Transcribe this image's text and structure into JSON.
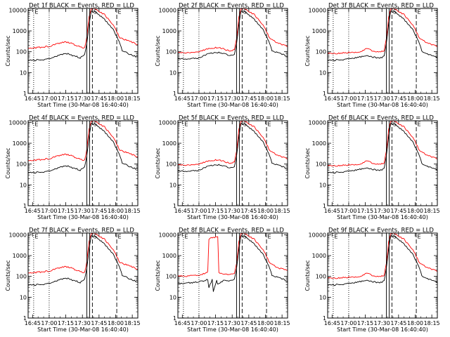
{
  "chart_data": {
    "type": "line",
    "shared": {
      "ylabel": "Counts/sec",
      "xlabel": "Start Time (30-Mar-08 16:40:40)",
      "yscale": "log",
      "ylim": [
        1,
        12000
      ],
      "xlim": [
        "16:41",
        "18:20"
      ],
      "yticks": [
        1,
        10,
        100,
        1000,
        10000
      ],
      "ytick_labels": [
        "1",
        "10",
        "100",
        "1000",
        "10000"
      ],
      "xticks": [
        "16:45",
        "17:00",
        "17:15",
        "17:30",
        "17:45",
        "18:00",
        "18:15"
      ],
      "markers": [
        {
          "time": "16:46",
          "label": "E",
          "style": "dotted"
        },
        {
          "time": "17:00",
          "label": "",
          "style": "dotted"
        },
        {
          "time": "17:34",
          "label": "",
          "style": "solid"
        },
        {
          "time": "17:36.5",
          "label": "",
          "style": "solid"
        },
        {
          "time": "17:39",
          "label": "S",
          "style": "dashed"
        },
        {
          "time": "18:01",
          "label": "E",
          "style": "dashed"
        }
      ],
      "series_colors": {
        "events": "#000000",
        "lld": "#ff0000"
      }
    },
    "panels": [
      {
        "title": "Det 1f BLACK = Events, RED = LLD",
        "markers": [
          "E",
          "",
          "",
          "",
          "S",
          "E"
        ],
        "series": [
          {
            "key": "events",
            "x": [
              "16:41",
              "16:50",
              "17:00",
              "17:10",
              "17:16",
              "17:22",
              "17:28",
              "17:32",
              "17:34",
              "17:36",
              "17:38",
              "17:42",
              "17:50",
              "17:58",
              "18:04",
              "18:06",
              "18:12",
              "18:20"
            ],
            "y": [
              38,
              40,
              45,
              75,
              80,
              65,
              52,
              70,
              250,
              2200,
              8500,
              8000,
              3500,
              1100,
              250,
              110,
              80,
              55
            ]
          },
          {
            "key": "lld",
            "x": [
              "16:41",
              "16:50",
              "17:00",
              "17:10",
              "17:16",
              "17:22",
              "17:28",
              "17:32",
              "17:34",
              "17:36",
              "17:38",
              "17:42",
              "17:50",
              "17:58",
              "18:04",
              "18:12",
              "18:20"
            ],
            "y": [
              150,
              160,
              180,
              270,
              290,
              230,
              170,
              160,
              500,
              5000,
              11000,
              11000,
              6000,
              1800,
              450,
              320,
              230
            ]
          }
        ]
      },
      {
        "title": "Det 2f BLACK = Events, RED = LLD",
        "markers": [
          "E",
          "",
          "",
          "",
          "S",
          "E"
        ],
        "series": [
          {
            "key": "events",
            "x": [
              "16:41",
              "16:50",
              "17:00",
              "17:10",
              "17:16",
              "17:22",
              "17:28",
              "17:32",
              "17:34",
              "17:36",
              "17:38",
              "17:42",
              "17:50",
              "17:58",
              "18:04",
              "18:06",
              "18:12",
              "18:20"
            ],
            "y": [
              45,
              45,
              52,
              85,
              95,
              80,
              65,
              70,
              250,
              2200,
              8500,
              8000,
              3500,
              1100,
              250,
              110,
              85,
              60
            ]
          },
          {
            "key": "lld",
            "x": [
              "16:41",
              "16:50",
              "17:00",
              "17:10",
              "17:16",
              "17:22",
              "17:28",
              "17:32",
              "17:34",
              "17:36",
              "17:38",
              "17:42",
              "17:50",
              "17:58",
              "18:04",
              "18:12",
              "18:20"
            ],
            "y": [
              90,
              92,
              100,
              150,
              160,
              140,
              110,
              120,
              400,
              4500,
              11000,
              11000,
              6000,
              1800,
              450,
              250,
              180
            ]
          }
        ]
      },
      {
        "title": "Det 3f BLACK = Events, RED = LLD",
        "markers": [
          "E",
          "",
          "",
          "",
          "S",
          "E"
        ],
        "series": [
          {
            "key": "events",
            "x": [
              "16:41",
              "16:50",
              "17:00",
              "17:10",
              "17:16",
              "17:22",
              "17:28",
              "17:32",
              "17:34",
              "17:36",
              "17:38",
              "17:42",
              "17:50",
              "17:58",
              "18:04",
              "18:06",
              "18:12",
              "18:20"
            ],
            "y": [
              38,
              40,
              45,
              55,
              70,
              55,
              50,
              60,
              250,
              2200,
              8500,
              8000,
              3500,
              1100,
              250,
              110,
              75,
              50
            ]
          },
          {
            "key": "lld",
            "x": [
              "16:41",
              "16:50",
              "17:00",
              "17:10",
              "17:16",
              "17:22",
              "17:28",
              "17:32",
              "17:34",
              "17:36",
              "17:38",
              "17:42",
              "17:50",
              "17:58",
              "18:04",
              "18:12",
              "18:20"
            ],
            "y": [
              80,
              85,
              90,
              100,
              140,
              110,
              100,
              110,
              400,
              4500,
              11000,
              11000,
              6000,
              1800,
              450,
              250,
              180
            ]
          }
        ]
      },
      {
        "title": "Det 4f BLACK = Events, RED = LLD",
        "markers": [
          "E",
          "",
          "",
          "",
          "S",
          "E"
        ],
        "series": [
          {
            "key": "events",
            "x": [
              "16:41",
              "16:50",
              "17:00",
              "17:10",
              "17:16",
              "17:22",
              "17:28",
              "17:32",
              "17:34",
              "17:36",
              "17:38",
              "17:42",
              "17:50",
              "17:58",
              "18:04",
              "18:06",
              "18:12",
              "18:20"
            ],
            "y": [
              38,
              40,
              45,
              75,
              80,
              65,
              52,
              70,
              250,
              2200,
              8500,
              8000,
              3500,
              1100,
              250,
              110,
              80,
              55
            ]
          },
          {
            "key": "lld",
            "x": [
              "16:41",
              "16:50",
              "17:00",
              "17:10",
              "17:16",
              "17:22",
              "17:28",
              "17:32",
              "17:34",
              "17:36",
              "17:38",
              "17:42",
              "17:50",
              "17:58",
              "18:04",
              "18:12",
              "18:20"
            ],
            "y": [
              150,
              160,
              180,
              270,
              290,
              230,
              170,
              160,
              500,
              5000,
              11000,
              11000,
              6000,
              1800,
              450,
              320,
              230
            ]
          }
        ]
      },
      {
        "title": "Det 5f BLACK = Events, RED = LLD",
        "markers": [
          "E",
          "",
          "",
          "",
          "S",
          "E"
        ],
        "series": [
          {
            "key": "events",
            "x": [
              "16:41",
              "16:50",
              "17:00",
              "17:10",
              "17:16",
              "17:22",
              "17:28",
              "17:32",
              "17:34",
              "17:36",
              "17:38",
              "17:42",
              "17:50",
              "17:58",
              "18:04",
              "18:06",
              "18:12",
              "18:20"
            ],
            "y": [
              45,
              45,
              52,
              85,
              95,
              80,
              65,
              70,
              250,
              2200,
              8500,
              8000,
              3500,
              1100,
              250,
              110,
              85,
              60
            ]
          },
          {
            "key": "lld",
            "x": [
              "16:41",
              "16:50",
              "17:00",
              "17:10",
              "17:16",
              "17:22",
              "17:28",
              "17:32",
              "17:34",
              "17:36",
              "17:38",
              "17:42",
              "17:50",
              "17:58",
              "18:04",
              "18:12",
              "18:20"
            ],
            "y": [
              90,
              92,
              100,
              150,
              160,
              140,
              110,
              120,
              400,
              4500,
              11000,
              11000,
              6000,
              1800,
              450,
              250,
              180
            ]
          }
        ]
      },
      {
        "title": "Det 6f BLACK = Events, RED = LLD",
        "markers": [
          "E",
          "",
          "",
          "",
          "S",
          "E"
        ],
        "series": [
          {
            "key": "events",
            "x": [
              "16:41",
              "16:50",
              "17:00",
              "17:10",
              "17:16",
              "17:22",
              "17:28",
              "17:32",
              "17:34",
              "17:36",
              "17:38",
              "17:42",
              "17:50",
              "17:58",
              "18:04",
              "18:06",
              "18:12",
              "18:20"
            ],
            "y": [
              38,
              40,
              45,
              55,
              70,
              55,
              50,
              60,
              250,
              2200,
              8500,
              8000,
              3500,
              1100,
              250,
              110,
              75,
              50
            ]
          },
          {
            "key": "lld",
            "x": [
              "16:41",
              "16:50",
              "17:00",
              "17:10",
              "17:16",
              "17:22",
              "17:28",
              "17:32",
              "17:34",
              "17:36",
              "17:38",
              "17:42",
              "17:50",
              "17:58",
              "18:04",
              "18:12",
              "18:20"
            ],
            "y": [
              80,
              85,
              90,
              100,
              140,
              110,
              100,
              110,
              400,
              4500,
              11000,
              11000,
              6000,
              1800,
              450,
              250,
              180
            ]
          }
        ]
      },
      {
        "title": "Det 7f BLACK = Events, RED = LLD",
        "markers": [
          "E",
          "",
          "",
          "",
          "S",
          "E"
        ],
        "series": [
          {
            "key": "events",
            "x": [
              "16:41",
              "16:50",
              "17:00",
              "17:10",
              "17:16",
              "17:22",
              "17:28",
              "17:32",
              "17:34",
              "17:36",
              "17:38",
              "17:42",
              "17:50",
              "17:58",
              "18:04",
              "18:06",
              "18:12",
              "18:20"
            ],
            "y": [
              38,
              40,
              45,
              75,
              80,
              65,
              52,
              70,
              250,
              2200,
              8500,
              8000,
              3500,
              1100,
              250,
              110,
              80,
              55
            ]
          },
          {
            "key": "lld",
            "x": [
              "16:41",
              "16:50",
              "17:00",
              "17:10",
              "17:16",
              "17:22",
              "17:28",
              "17:32",
              "17:34",
              "17:36",
              "17:38",
              "17:42",
              "17:50",
              "17:58",
              "18:04",
              "18:12",
              "18:20"
            ],
            "y": [
              150,
              160,
              180,
              270,
              290,
              230,
              170,
              160,
              500,
              5000,
              11000,
              11000,
              6000,
              1800,
              450,
              320,
              230
            ]
          }
        ]
      },
      {
        "title": "Det 8f BLACK = Events, RED = LLD",
        "markers": [
          "E",
          "",
          "",
          "",
          "S",
          "E"
        ],
        "series": [
          {
            "key": "events",
            "x": [
              "16:41",
              "16:50",
              "17:00",
              "17:08",
              "17:09",
              "17:12",
              "17:13",
              "17:16",
              "17:17",
              "17:22",
              "17:28",
              "17:32",
              "17:34",
              "17:36",
              "17:38",
              "17:42",
              "17:50",
              "17:58",
              "18:04",
              "18:06",
              "18:12",
              "18:20"
            ],
            "y": [
              45,
              48,
              55,
              70,
              30,
              70,
              20,
              70,
              40,
              65,
              60,
              70,
              250,
              2200,
              8500,
              8000,
              3500,
              1100,
              250,
              110,
              85,
              60
            ]
          },
          {
            "key": "lld",
            "x": [
              "16:41",
              "16:50",
              "17:00",
              "17:07",
              "17:08",
              "17:09",
              "17:11",
              "17:12",
              "17:17",
              "17:18",
              "17:22",
              "17:28",
              "17:32",
              "17:34",
              "17:36",
              "17:38",
              "17:42",
              "17:50",
              "17:58",
              "18:04",
              "18:12",
              "18:20"
            ],
            "y": [
              100,
              105,
              110,
              150,
              170,
              6000,
              7000,
              7500,
              7500,
              160,
              130,
              120,
              130,
              400,
              4500,
              11000,
              11000,
              6000,
              1800,
              450,
              250,
              190
            ]
          }
        ]
      },
      {
        "title": "Det 9f BLACK = Events, RED = LLD",
        "markers": [
          "E",
          "",
          "",
          "",
          "S",
          "E"
        ],
        "series": [
          {
            "key": "events",
            "x": [
              "16:41",
              "16:50",
              "17:00",
              "17:10",
              "17:16",
              "17:22",
              "17:28",
              "17:32",
              "17:34",
              "17:36",
              "17:38",
              "17:42",
              "17:50",
              "17:58",
              "18:04",
              "18:06",
              "18:12",
              "18:20"
            ],
            "y": [
              38,
              40,
              45,
              55,
              70,
              55,
              50,
              60,
              250,
              2200,
              8500,
              8000,
              3500,
              1100,
              250,
              110,
              75,
              50
            ]
          },
          {
            "key": "lld",
            "x": [
              "16:41",
              "16:50",
              "17:00",
              "17:10",
              "17:16",
              "17:22",
              "17:28",
              "17:32",
              "17:34",
              "17:36",
              "17:38",
              "17:42",
              "17:50",
              "17:58",
              "18:04",
              "18:12",
              "18:20"
            ],
            "y": [
              80,
              85,
              90,
              100,
              140,
              110,
              100,
              110,
              400,
              4500,
              11000,
              11000,
              6000,
              1800,
              450,
              250,
              180
            ]
          }
        ]
      }
    ]
  }
}
